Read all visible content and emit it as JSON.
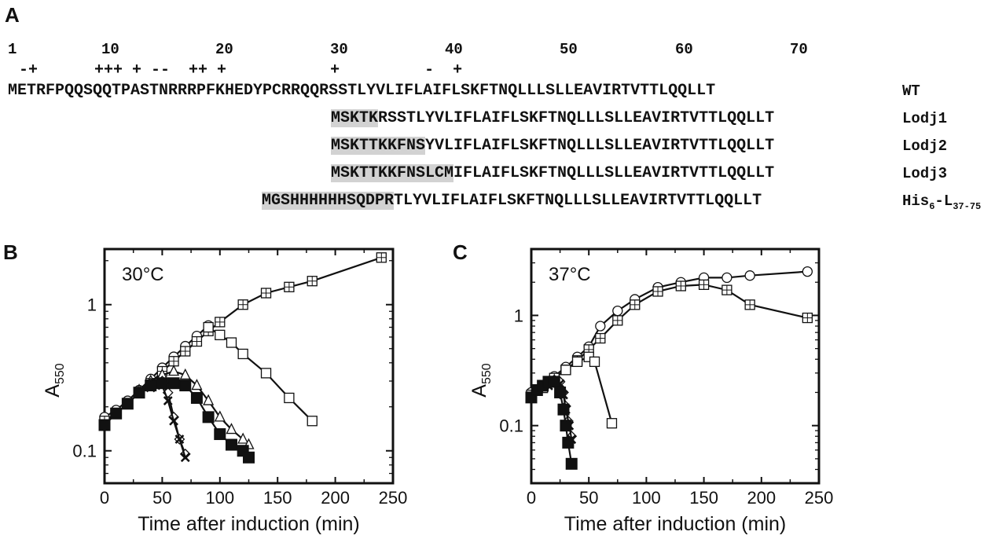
{
  "panel_a": {
    "letter": "A",
    "number_labels": [
      "1",
      "10",
      "20",
      "30",
      "40",
      "50",
      "60",
      "70"
    ],
    "charge_row": "-+      +++ + --  ++ +           +         -  +",
    "rows": [
      {
        "hl": "",
        "rest": "METRFPQQSQQTPASTNRRRPFKHEDYPCRRQQRSSTLYVLIFLAIFLSKFTNQLLLSLLEAVIRTVTTLQQLLT",
        "label": "WT"
      },
      {
        "hl": "MSKTK",
        "rest": "RSSTLYVLIFLAIFLSKFTNQLLLSLLEAVIRTVTTLQQLLT",
        "label": "Lodj1"
      },
      {
        "hl": "MSKTTKKFNS",
        "rest": "YVLIFLAIFLSKFTNQLLLSLLEAVIRTVTTLQQLLT",
        "label": "Lodj2"
      },
      {
        "hl": "MSKTTKKFNSLCM",
        "rest": "IFLAIFLSKFTNQLLLSLLEAVIRTVTTLQQLLT",
        "label": "Lodj3"
      },
      {
        "hl": "MGSHHHHHHSQDPR",
        "rest": "TLYVLIFLAIFLSKFTNQLLLSLLEAVIRTVTTLQQLLT",
        "label_main": "His",
        "label_sub1": "6",
        "label_mid": "-L",
        "label_sub2": "37-75"
      }
    ]
  },
  "chart_data": [
    {
      "panel": "B",
      "type": "line",
      "title": "30°C",
      "xlabel": "Time after induction (min)",
      "ylabel_main": "A",
      "ylabel_sub": "550",
      "yscale": "log",
      "xlim": [
        0,
        250
      ],
      "ylim": [
        0.06,
        2.4
      ],
      "xticks": [
        0,
        50,
        100,
        150,
        200,
        250
      ],
      "yticks": [
        {
          "v": 0.1,
          "label": "0.1"
        },
        {
          "v": 1,
          "label": "1"
        }
      ],
      "series": [
        {
          "name": "open circle",
          "marker": "circle-open",
          "x": [
            0,
            10,
            20,
            30,
            40,
            50,
            60,
            70,
            80,
            90
          ],
          "y": [
            0.17,
            0.19,
            0.22,
            0.26,
            0.31,
            0.37,
            0.44,
            0.52,
            0.61,
            0.72
          ]
        },
        {
          "name": "crossed square",
          "marker": "square-cross",
          "x": [
            0,
            10,
            20,
            30,
            40,
            50,
            60,
            70,
            80,
            90,
            100,
            120,
            140,
            160,
            180,
            240
          ],
          "y": [
            0.16,
            0.18,
            0.21,
            0.25,
            0.29,
            0.35,
            0.41,
            0.48,
            0.56,
            0.66,
            0.76,
            1.0,
            1.2,
            1.32,
            1.45,
            2.1
          ]
        },
        {
          "name": "open square",
          "marker": "square-open",
          "x": [
            90,
            100,
            110,
            120,
            140,
            160,
            180
          ],
          "y": [
            0.7,
            0.62,
            0.55,
            0.46,
            0.34,
            0.23,
            0.16
          ]
        },
        {
          "name": "open triangle",
          "marker": "triangle-open",
          "x": [
            30,
            40,
            50,
            60,
            70,
            80,
            90,
            100,
            110,
            120,
            125
          ],
          "y": [
            0.26,
            0.3,
            0.33,
            0.35,
            0.33,
            0.28,
            0.22,
            0.17,
            0.14,
            0.12,
            0.11
          ]
        },
        {
          "name": "open diamond",
          "marker": "diamond-open",
          "x": [
            30,
            40,
            50,
            55,
            60,
            65,
            70
          ],
          "y": [
            0.25,
            0.29,
            0.3,
            0.25,
            0.17,
            0.12,
            0.095
          ]
        },
        {
          "name": "cross",
          "marker": "x",
          "x": [
            40,
            50,
            55,
            60,
            65,
            70
          ],
          "y": [
            0.27,
            0.28,
            0.22,
            0.16,
            0.12,
            0.09
          ]
        },
        {
          "name": "filled square",
          "marker": "square-filled",
          "x": [
            0,
            10,
            20,
            30,
            40,
            50,
            60,
            70,
            80,
            90,
            100,
            110,
            120,
            125
          ],
          "y": [
            0.15,
            0.18,
            0.21,
            0.25,
            0.28,
            0.29,
            0.29,
            0.28,
            0.23,
            0.17,
            0.13,
            0.11,
            0.1,
            0.09
          ]
        }
      ]
    },
    {
      "panel": "C",
      "type": "line",
      "title": "37°C",
      "xlabel": "Time after induction (min)",
      "ylabel_main": "A",
      "ylabel_sub": "550",
      "yscale": "log",
      "xlim": [
        0,
        250
      ],
      "ylim": [
        0.03,
        4.0
      ],
      "xticks": [
        0,
        50,
        100,
        150,
        200,
        250
      ],
      "yticks": [
        {
          "v": 0.1,
          "label": "0.1"
        },
        {
          "v": 1,
          "label": "1"
        }
      ],
      "series": [
        {
          "name": "open circle",
          "marker": "circle-open",
          "x": [
            0,
            10,
            20,
            30,
            40,
            50,
            60,
            75,
            90,
            110,
            130,
            150,
            170,
            190,
            240
          ],
          "y": [
            0.2,
            0.23,
            0.28,
            0.34,
            0.42,
            0.52,
            0.8,
            1.1,
            1.4,
            1.8,
            2.0,
            2.2,
            2.2,
            2.3,
            2.5
          ]
        },
        {
          "name": "crossed square",
          "marker": "square-cross",
          "x": [
            0,
            10,
            20,
            30,
            40,
            50,
            60,
            75,
            90,
            110,
            130,
            150,
            170,
            190,
            240
          ],
          "y": [
            0.19,
            0.22,
            0.27,
            0.32,
            0.39,
            0.49,
            0.62,
            0.9,
            1.25,
            1.65,
            1.85,
            1.9,
            1.7,
            1.25,
            0.95
          ]
        },
        {
          "name": "open square",
          "marker": "square-open",
          "x": [
            30,
            40,
            50,
            55,
            70
          ],
          "y": [
            0.32,
            0.38,
            0.42,
            0.38,
            0.105
          ]
        },
        {
          "name": "open diamond",
          "marker": "diamond-open",
          "x": [
            15,
            20,
            25,
            28,
            30,
            32,
            35
          ],
          "y": [
            0.24,
            0.26,
            0.25,
            0.2,
            0.15,
            0.11,
            0.08
          ]
        },
        {
          "name": "cross",
          "marker": "x",
          "x": [
            15,
            20,
            25,
            28,
            30,
            33,
            35
          ],
          "y": [
            0.23,
            0.25,
            0.24,
            0.19,
            0.14,
            0.1,
            0.075
          ]
        },
        {
          "name": "filled square",
          "marker": "square-filled",
          "x": [
            0,
            5,
            10,
            15,
            20,
            25,
            28,
            30,
            32,
            35
          ],
          "y": [
            0.18,
            0.21,
            0.23,
            0.25,
            0.25,
            0.2,
            0.14,
            0.1,
            0.07,
            0.045
          ]
        }
      ]
    }
  ]
}
